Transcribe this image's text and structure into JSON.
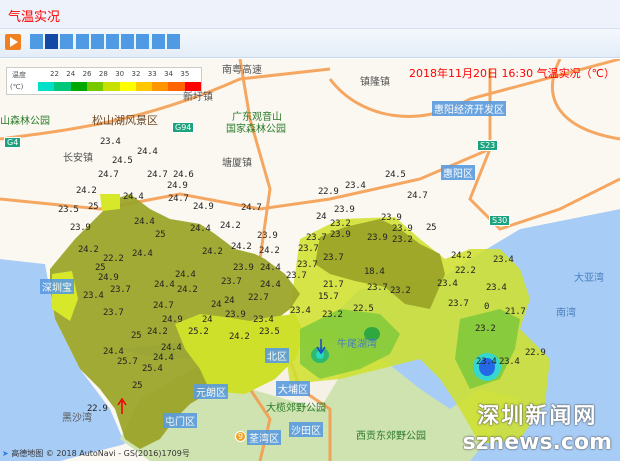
{
  "title": "气温实况",
  "toolbar": {
    "play_icon": "play-icon",
    "frames": 10,
    "active_frame": 2
  },
  "legend": {
    "label_line1": "温度",
    "label_line2": "(℃)",
    "ticks": [
      "22",
      "24",
      "26",
      "28",
      "30",
      "32",
      "33",
      "34",
      "35"
    ],
    "colors": [
      "#00e0c8",
      "#00c878",
      "#00a800",
      "#78c800",
      "#c8e000",
      "#ffff00",
      "#ffc800",
      "#ff9600",
      "#ff6400",
      "#ff0000"
    ]
  },
  "headline": "2018年11月20日 16:30 气温实况（℃）",
  "stations": [
    "23.4",
    "24.4",
    "24.5",
    "24.7",
    "24.7",
    "24.6",
    "24.9",
    "24.2",
    "24.4",
    "24.7",
    "24.9",
    "24.7",
    "23.5",
    "25",
    "24.4",
    "23.9",
    "24.4",
    "24.2",
    "25",
    "23.9",
    "24.2",
    "22.2",
    "24.4",
    "24.2",
    "24.2",
    "24.2",
    "25",
    "24.4",
    "23.9",
    "24.4",
    "24.9",
    "23.7",
    "24.4",
    "24.4",
    "23.7",
    "24.2",
    "23.4",
    "22.7",
    "24",
    "24",
    "24.7",
    "23.7",
    "23.9",
    "24.9",
    "24",
    "23.4",
    "24.2",
    "25",
    "25.2",
    "23.5",
    "24.2",
    "24.4",
    "24.4",
    "25.7",
    "24.4",
    "25.4",
    "25",
    "24.5",
    "23.4",
    "22.9",
    "24.7",
    "23.9",
    "24",
    "23.9",
    "23.2",
    "23.9",
    "25",
    "23.7",
    "23.9",
    "23.9",
    "23.2",
    "23.7",
    "23.7",
    "23.7",
    "18.4",
    "23.7",
    "21.7",
    "23.7",
    "23.2",
    "23.4",
    "15.7",
    "22.5",
    "23.4",
    "23.2",
    "24.2",
    "23.4",
    "22.2",
    "23.4",
    "23.7",
    "0",
    "21.7",
    "23.2",
    "22.9",
    "23.4",
    "23.4",
    "22.9"
  ],
  "places": {
    "districts": [
      "惠阳经济开发区",
      "惠阳区",
      "北区",
      "元朗区",
      "大埔区",
      "屯门区",
      "荃湾区",
      "沙田区",
      "深圳宝"
    ],
    "parks": [
      "广东观音山",
      "国家森林公园",
      "松山湖风景区",
      "山森林公园",
      "大榄郊野公园",
      "西贡东郊野公园"
    ],
    "towns": [
      "南粤高速",
      "新圩镇",
      "长安镇",
      "塘厦镇",
      "镇隆镇",
      "黑沙湾"
    ],
    "seas": [
      "大亚湾",
      "南湾",
      "牛尾湖湾"
    ],
    "highways": [
      "G94",
      "G4",
      "S23",
      "S30",
      "9"
    ]
  },
  "watermark": {
    "line1": "深圳新闻网",
    "line2": "sznews.com"
  },
  "credit": "高德地图 © 2018 AutoNavi - GS(2016)1709号"
}
